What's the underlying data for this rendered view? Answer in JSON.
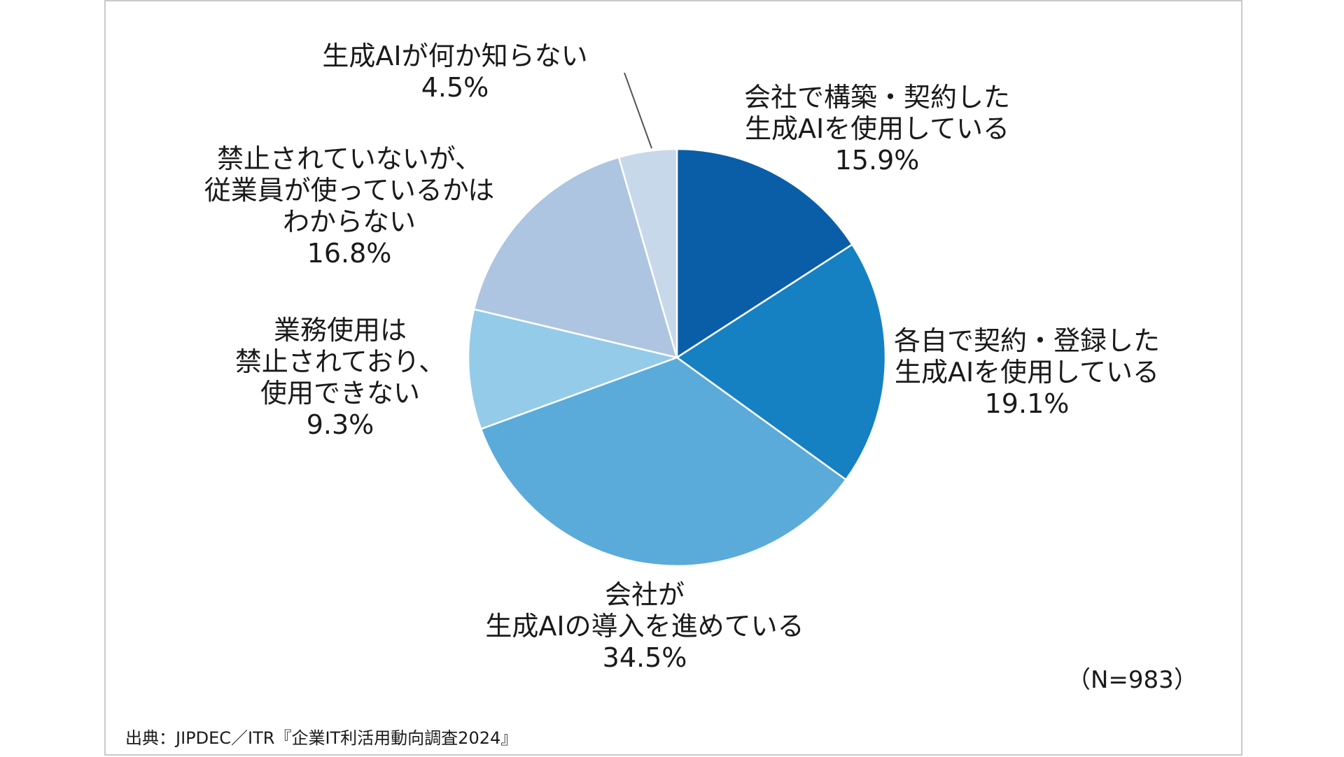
{
  "chart_data": {
    "type": "pie",
    "title": "",
    "start_angle_deg": 0,
    "direction": "clockwise",
    "slices": [
      {
        "label_lines": [
          "会社で構築・契約した",
          "生成AIを使用している"
        ],
        "value_text": "15.9%",
        "value": 15.9,
        "color": "#0a5ea8"
      },
      {
        "label_lines": [
          "各自で契約・登録した",
          "生成AIを使用している"
        ],
        "value_text": "19.1%",
        "value": 19.1,
        "color": "#1681c2"
      },
      {
        "label_lines": [
          "会社が",
          "生成AIの導入を進めている"
        ],
        "value_text": "34.5%",
        "value": 34.5,
        "color": "#5aabd9"
      },
      {
        "label_lines": [
          "業務使用は",
          "禁止されており、",
          "使用できない"
        ],
        "value_text": "9.3%",
        "value": 9.3,
        "color": "#94cbe8"
      },
      {
        "label_lines": [
          "禁止されていないが、",
          "従業員が使っているかは",
          "わからない"
        ],
        "value_text": "16.8%",
        "value": 16.8,
        "color": "#adc5e0"
      },
      {
        "label_lines": [
          "生成AIが何か知らない"
        ],
        "value_text": "4.5%",
        "value": 4.5,
        "color": "#c7d8ea"
      }
    ],
    "sample_note": "（N=983）",
    "source": "出典：JIPDEC／ITR『企業IT利活用動向調査2024』"
  }
}
